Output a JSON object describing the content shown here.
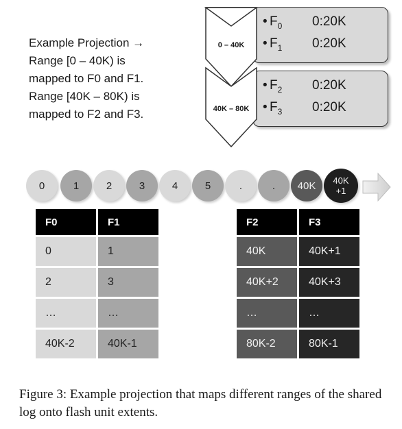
{
  "description": {
    "lines": [
      "Example Projection →",
      "Range [0 – 40K) is",
      "mapped to F0 and F1.",
      "Range [40K – 80K) is",
      "mapped to F2 and F3."
    ]
  },
  "projections": [
    {
      "range_label": "0 – 40K",
      "entries": [
        {
          "unit": "F",
          "sub": "0",
          "extent": "0:20K"
        },
        {
          "unit": "F",
          "sub": "1",
          "extent": "0:20K"
        }
      ]
    },
    {
      "range_label": "40K – 80K",
      "entries": [
        {
          "unit": "F",
          "sub": "2",
          "extent": "0:20K"
        },
        {
          "unit": "F",
          "sub": "3",
          "extent": "0:20K"
        }
      ]
    }
  ],
  "bullet": "•",
  "log_positions": [
    {
      "label": "0",
      "shade": "light"
    },
    {
      "label": "1",
      "shade": "mid"
    },
    {
      "label": "2",
      "shade": "light"
    },
    {
      "label": "3",
      "shade": "mid"
    },
    {
      "label": "4",
      "shade": "light"
    },
    {
      "label": "5",
      "shade": "mid"
    },
    {
      "label": ".",
      "shade": "light"
    },
    {
      "label": ".",
      "shade": "mid"
    },
    {
      "label": "40K",
      "shade": "dark"
    },
    {
      "label_top": "40K",
      "label_bottom": "+1",
      "shade": "black"
    }
  ],
  "tables": [
    {
      "headers": [
        "F0",
        "F1"
      ],
      "rows": [
        [
          "0",
          "1"
        ],
        [
          "2",
          "3"
        ],
        [
          "…",
          "…"
        ],
        [
          "40K-2",
          "40K-1"
        ]
      ]
    },
    {
      "headers": [
        "F2",
        "F3"
      ],
      "rows": [
        [
          "40K",
          "40K+1"
        ],
        [
          "40K+2",
          "40K+3"
        ],
        [
          "…",
          "…"
        ],
        [
          "80K-2",
          "80K-1"
        ]
      ]
    }
  ],
  "caption": "Figure 3: Example projection that maps different ranges of the shared log onto flash unit extents."
}
